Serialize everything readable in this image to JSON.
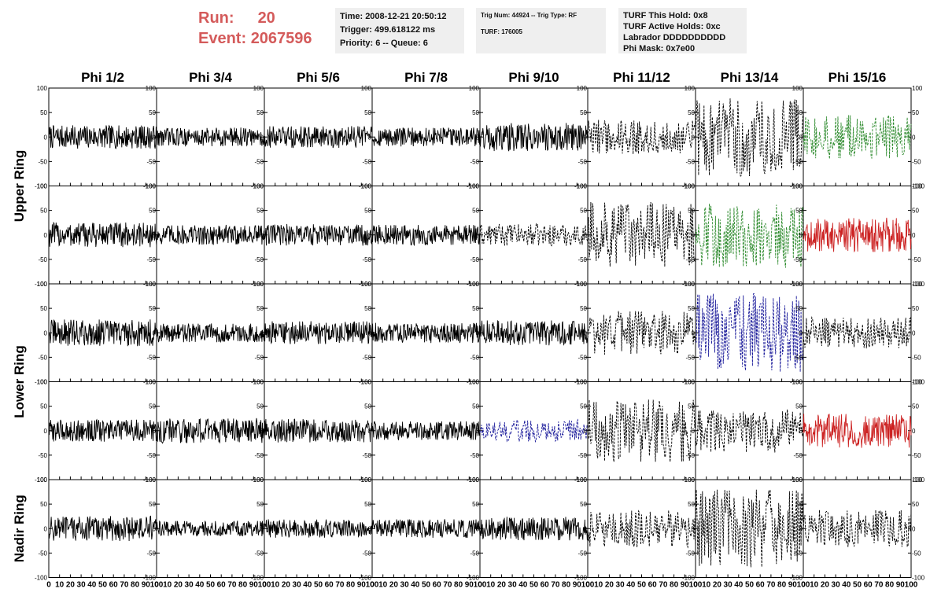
{
  "header": {
    "run_label": "Run:",
    "run_value": "20",
    "event_label": "Event:",
    "event_value": "2067596"
  },
  "info_time": {
    "time": "Time: 2008-12-21 20:50:12",
    "trigger": "Trigger: 499.618122 ms",
    "priority": "Priority: 6 -- Queue: 6"
  },
  "info_trig": {
    "trig": "Trig Num: 44924 -- Trig Type: RF",
    "turf": "TURF: 176005"
  },
  "info_turf": {
    "hold": "TURF This Hold: 0x8",
    "active": "TURF Active Holds: 0xc",
    "labrador": "Labrador DDDDDDDDDD",
    "phimask": "Phi Mask: 0x7e00"
  },
  "colors": {
    "black": "#000000",
    "green": "#2e8b2e",
    "red": "#cc2222",
    "blue": "#1a1a9a",
    "header_red": "#d45b5b",
    "panel_bg": "#efefef"
  },
  "chart_data": {
    "type": "line",
    "columns": [
      "Phi 1/2",
      "Phi 3/4",
      "Phi 5/6",
      "Phi 7/8",
      "Phi 9/10",
      "Phi 11/12",
      "Phi 13/14",
      "Phi 15/16"
    ],
    "ring_labels": [
      "Upper Ring",
      "Lower Ring",
      "Nadir Ring"
    ],
    "rows": 5,
    "ylim": [
      -100,
      100
    ],
    "y_ticks": [
      -100,
      -50,
      0,
      50,
      100
    ],
    "xlim": [
      0,
      100
    ],
    "x_tick_labels": [
      "0",
      "10",
      "20",
      "30",
      "40",
      "50",
      "60",
      "70",
      "80",
      "90",
      "100"
    ],
    "line_styles": {
      "solid": "solid",
      "dashed": "dashed"
    },
    "cells": [
      [
        {
          "style": "solid",
          "color": "black",
          "amp": 15
        },
        {
          "style": "solid",
          "color": "black",
          "amp": 12
        },
        {
          "style": "solid",
          "color": "black",
          "amp": 14
        },
        {
          "style": "solid",
          "color": "black",
          "amp": 12
        },
        {
          "style": "solid",
          "color": "black",
          "amp": 18
        },
        {
          "style": "dashed",
          "color": "black",
          "amp": 22
        },
        {
          "style": "dashed",
          "color": "black",
          "amp": 50
        },
        {
          "style": "dashed",
          "color": "green",
          "amp": 28
        }
      ],
      [
        {
          "style": "solid",
          "color": "black",
          "amp": 16
        },
        {
          "style": "solid",
          "color": "black",
          "amp": 13
        },
        {
          "style": "solid",
          "color": "black",
          "amp": 14
        },
        {
          "style": "solid",
          "color": "black",
          "amp": 13
        },
        {
          "style": "dashed",
          "color": "black",
          "amp": 14
        },
        {
          "style": "dashed",
          "color": "black",
          "amp": 42
        },
        {
          "style": "dashed",
          "color": "green",
          "amp": 42
        },
        {
          "style": "solid",
          "color": "red",
          "amp": 22
        }
      ],
      [
        {
          "style": "solid",
          "color": "black",
          "amp": 17
        },
        {
          "style": "solid",
          "color": "black",
          "amp": 12
        },
        {
          "style": "solid",
          "color": "black",
          "amp": 15
        },
        {
          "style": "solid",
          "color": "black",
          "amp": 13
        },
        {
          "style": "solid",
          "color": "black",
          "amp": 16
        },
        {
          "style": "dashed",
          "color": "black",
          "amp": 28
        },
        {
          "style": "dashed",
          "color": "blue",
          "amp": 50
        },
        {
          "style": "dashed",
          "color": "black",
          "amp": 20
        }
      ],
      [
        {
          "style": "solid",
          "color": "black",
          "amp": 14
        },
        {
          "style": "solid",
          "color": "black",
          "amp": 16
        },
        {
          "style": "solid",
          "color": "black",
          "amp": 15
        },
        {
          "style": "solid",
          "color": "black",
          "amp": 12
        },
        {
          "style": "dashed",
          "color": "blue",
          "amp": 14
        },
        {
          "style": "dashed",
          "color": "black",
          "amp": 40
        },
        {
          "style": "dashed",
          "color": "black",
          "amp": 28
        },
        {
          "style": "solid",
          "color": "red",
          "amp": 22
        }
      ],
      [
        {
          "style": "solid",
          "color": "black",
          "amp": 16
        },
        {
          "style": "solid",
          "color": "black",
          "amp": 10
        },
        {
          "style": "solid",
          "color": "black",
          "amp": 12
        },
        {
          "style": "solid",
          "color": "black",
          "amp": 12
        },
        {
          "style": "solid",
          "color": "black",
          "amp": 15
        },
        {
          "style": "dashed",
          "color": "black",
          "amp": 24
        },
        {
          "style": "dashed",
          "color": "black",
          "amp": 52
        },
        {
          "style": "dashed",
          "color": "black",
          "amp": 24
        }
      ]
    ]
  }
}
